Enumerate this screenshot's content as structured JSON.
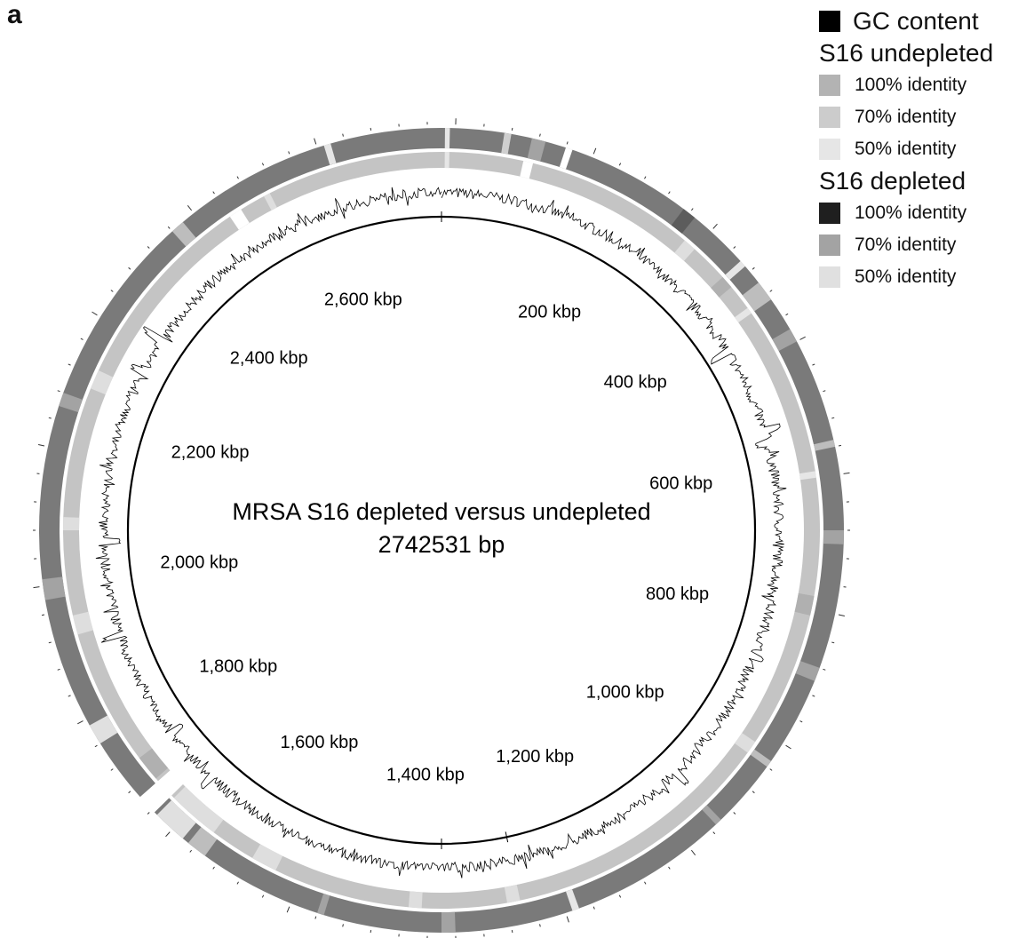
{
  "panel_label": "a",
  "title_line1": "MRSA S16 depleted versus undepleted",
  "title_line2": "2742531 bp",
  "genome_length_bp": 2742531,
  "scale_labels": [
    {
      "kbp": 200,
      "text": "200 kbp"
    },
    {
      "kbp": 400,
      "text": "400 kbp"
    },
    {
      "kbp": 600,
      "text": "600 kbp"
    },
    {
      "kbp": 800,
      "text": "800 kbp"
    },
    {
      "kbp": 1000,
      "text": "1,000 kbp"
    },
    {
      "kbp": 1200,
      "text": "1,200 kbp"
    },
    {
      "kbp": 1400,
      "text": "1,400 kbp"
    },
    {
      "kbp": 1600,
      "text": "1,600 kbp"
    },
    {
      "kbp": 1800,
      "text": "1,800 kbp"
    },
    {
      "kbp": 2000,
      "text": "2,000 kbp"
    },
    {
      "kbp": 2200,
      "text": "2,200 kbp"
    },
    {
      "kbp": 2400,
      "text": "2,400 kbp"
    },
    {
      "kbp": 2600,
      "text": "2,600 kbp"
    }
  ],
  "legend": {
    "gc": {
      "label": "GC content",
      "color": "#000000"
    },
    "undepleted": {
      "label": "S16 undepleted",
      "items": [
        {
          "label": "100% identity",
          "color": "#b3b3b3"
        },
        {
          "label": "70% identity",
          "color": "#cccccc"
        },
        {
          "label": "50% identity",
          "color": "#e6e6e6"
        }
      ]
    },
    "depleted": {
      "label": "S16 depleted",
      "items": [
        {
          "label": "100% identity",
          "color": "#1f1f1f"
        },
        {
          "label": "70% identity",
          "color": "#a3a3a3"
        },
        {
          "label": "50% identity",
          "color": "#e0e0e0"
        }
      ]
    }
  },
  "colors": {
    "outer_ring": "#7a7a7a",
    "inner_ring": "#c4c4c4",
    "backbone": "#000000"
  }
}
